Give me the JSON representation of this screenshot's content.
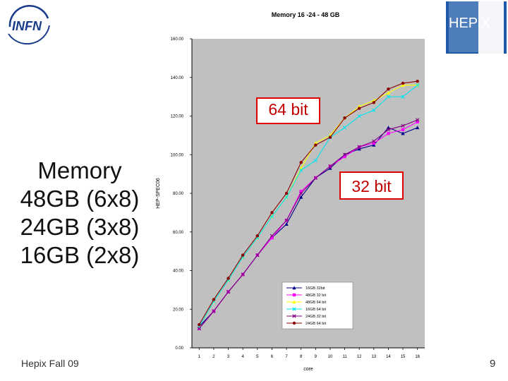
{
  "logos": {
    "left_text": "INFN",
    "right_text": "HEPiX"
  },
  "slide": {
    "memory_title": "Memory",
    "memory_lines": [
      "48GB (6x8)",
      "24GB (3x8)",
      "16GB (2x8)"
    ],
    "footer": "Hepix Fall 09",
    "page_number": "9",
    "callout_64": "64 bit",
    "callout_32": "32 bit"
  },
  "colors": {
    "plot_bg": "#c0c0c0",
    "callout_border": "#e00000",
    "callout_text": "#c00000"
  },
  "chart_data": {
    "type": "line",
    "title": "Memory 16 -24 - 48 GB",
    "xlabel": "core",
    "ylabel": "HEP-SPEC06",
    "x": [
      1,
      2,
      3,
      4,
      5,
      6,
      7,
      8,
      9,
      10,
      11,
      12,
      13,
      14,
      15,
      16
    ],
    "ylim": [
      0,
      160
    ],
    "yticks": [
      "0.00",
      "20.00",
      "40.00",
      "60.00",
      "80.00",
      "100.00",
      "120.00",
      "140.00",
      "160.00"
    ],
    "grid": false,
    "legend_position": "bottom-right inside plot",
    "series": [
      {
        "name": "16GB 32bit",
        "color": "#00008b",
        "marker": "triangle",
        "values": [
          11,
          19,
          29,
          38,
          48,
          57,
          64,
          78,
          88,
          93,
          100,
          103,
          105,
          114,
          111,
          114
        ]
      },
      {
        "name": "48GB 32 bit",
        "color": "#ff00ff",
        "marker": "square",
        "values": [
          10,
          19,
          29,
          38,
          48,
          57,
          66,
          81,
          88,
          94,
          99,
          104,
          106,
          111,
          113,
          117
        ]
      },
      {
        "name": "48GB 64 bit",
        "color": "#ffff00",
        "marker": "triangle",
        "values": [
          11,
          24,
          35,
          47,
          57,
          68,
          78,
          93,
          106,
          110,
          119,
          125,
          128,
          132,
          136,
          136
        ]
      },
      {
        "name": "16GB 64 bit",
        "color": "#00e5ee",
        "marker": "x",
        "values": [
          11,
          24,
          35,
          47,
          57,
          68,
          78,
          92,
          97,
          109,
          114,
          120,
          123,
          130,
          130,
          136
        ]
      },
      {
        "name": "24GB 32 bit",
        "color": "#800080",
        "marker": "x",
        "values": [
          10,
          19,
          29,
          38,
          48,
          58,
          66,
          80,
          88,
          94,
          100,
          104,
          107,
          113,
          115,
          118
        ]
      },
      {
        "name": "24GB 64 bit",
        "color": "#8b0000",
        "marker": "circle",
        "values": [
          12,
          25,
          36,
          48,
          58,
          70,
          80,
          96,
          105,
          109,
          119,
          124,
          127,
          134,
          137,
          138
        ]
      }
    ]
  }
}
